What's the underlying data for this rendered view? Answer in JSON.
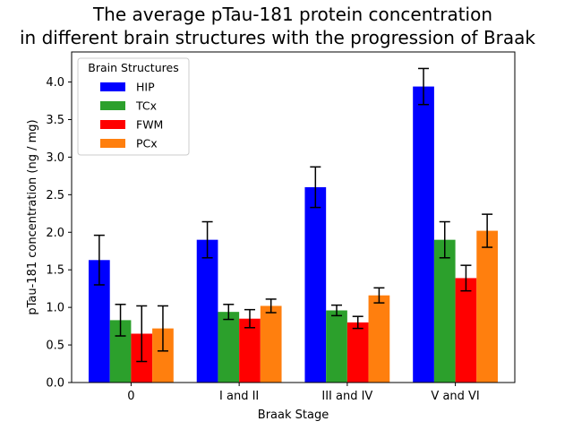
{
  "chart_data": {
    "type": "bar",
    "title_line1": "The average pTau-181 protein concentration",
    "title_line2": "in different brain structures with the progression of Braak",
    "xlabel": "Braak Stage",
    "ylabel": "pTau-181 concentration (ng / mg)",
    "categories": [
      "0",
      "I and II",
      "III and IV",
      "V and VI"
    ],
    "ylim": [
      0,
      4.4
    ],
    "yticks": [
      "0.0",
      "0.5",
      "1.0",
      "1.5",
      "2.0",
      "2.5",
      "3.0",
      "3.5",
      "4.0"
    ],
    "legend_title": "Brain Structures",
    "legend_position": "top-left",
    "grid": false,
    "series": [
      {
        "name": "HIP",
        "color": "#0000ff",
        "values": [
          1.63,
          1.9,
          2.6,
          3.94
        ],
        "errors": [
          0.33,
          0.24,
          0.27,
          0.24
        ]
      },
      {
        "name": "TCx",
        "color": "#2ca02c",
        "values": [
          0.83,
          0.94,
          0.96,
          1.9
        ],
        "errors": [
          0.21,
          0.1,
          0.07,
          0.24
        ]
      },
      {
        "name": "FWM",
        "color": "#ff0000",
        "values": [
          0.65,
          0.85,
          0.8,
          1.39
        ],
        "errors": [
          0.37,
          0.12,
          0.08,
          0.17
        ]
      },
      {
        "name": "PCx",
        "color": "#ff7f0e",
        "values": [
          0.72,
          1.02,
          1.16,
          2.02
        ],
        "errors": [
          0.3,
          0.09,
          0.1,
          0.22
        ]
      }
    ]
  }
}
